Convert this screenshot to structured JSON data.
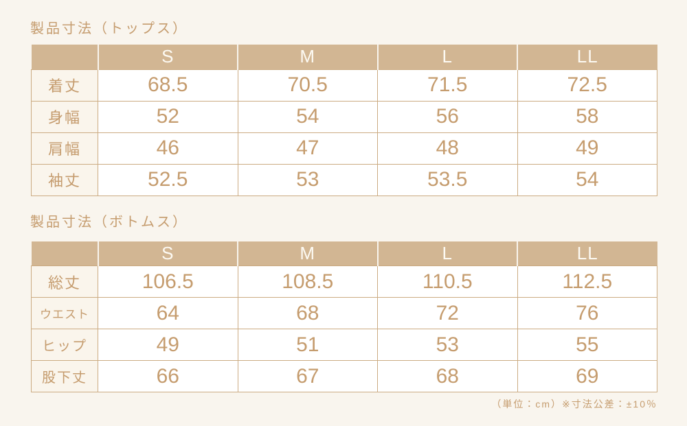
{
  "colors": {
    "page_bg": "#f9f5ee",
    "header_tan": "#d2b693",
    "border_tan": "#cbab82",
    "text_tan": "#c59c6e",
    "header_text": "#fdfaf3"
  },
  "tables": [
    {
      "title": "製品寸法（トップス）",
      "columns": [
        "S",
        "M",
        "L",
        "LL"
      ],
      "rows": [
        {
          "label": "着丈",
          "values": [
            "68.5",
            "70.5",
            "71.5",
            "72.5"
          ]
        },
        {
          "label": "身幅",
          "values": [
            "52",
            "54",
            "56",
            "58"
          ]
        },
        {
          "label": "肩幅",
          "values": [
            "46",
            "47",
            "48",
            "49"
          ]
        },
        {
          "label": "袖丈",
          "values": [
            "52.5",
            "53",
            "53.5",
            "54"
          ]
        }
      ]
    },
    {
      "title": "製品寸法（ボトムス）",
      "columns": [
        "S",
        "M",
        "L",
        "LL"
      ],
      "rows": [
        {
          "label": "総丈",
          "values": [
            "106.5",
            "108.5",
            "110.5",
            "112.5"
          ]
        },
        {
          "label": "ウエスト",
          "values": [
            "64",
            "68",
            "72",
            "76"
          ]
        },
        {
          "label": "ヒップ",
          "values": [
            "49",
            "51",
            "53",
            "55"
          ]
        },
        {
          "label": "股下丈",
          "values": [
            "66",
            "67",
            "68",
            "69"
          ]
        }
      ]
    }
  ],
  "footer": {
    "unit_note": "（単位：cm）※寸法公差：±10％"
  }
}
